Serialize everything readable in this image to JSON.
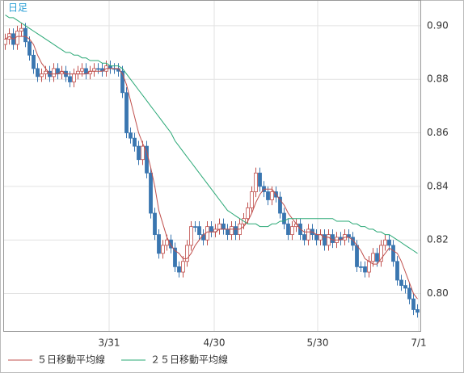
{
  "chart_data": {
    "type": "candlestick",
    "label": "日足",
    "open": [
      0.893,
      0.895,
      0.897,
      0.893,
      0.898,
      0.899,
      0.894,
      0.889,
      0.884,
      0.881,
      0.882,
      0.883,
      0.881,
      0.884,
      0.882,
      0.883,
      0.881,
      0.879,
      0.882,
      0.883,
      0.884,
      0.882,
      0.883,
      0.884,
      0.884,
      0.883,
      0.885,
      0.884,
      0.884,
      0.883,
      0.875,
      0.86,
      0.858,
      0.855,
      0.85,
      0.855,
      0.845,
      0.83,
      0.822,
      0.815,
      0.818,
      0.82,
      0.817,
      0.81,
      0.808,
      0.812,
      0.818,
      0.825,
      0.825,
      0.822,
      0.82,
      0.825,
      0.823,
      0.824,
      0.826,
      0.824,
      0.822,
      0.825,
      0.822,
      0.826,
      0.828,
      0.832,
      0.838,
      0.845,
      0.84,
      0.838,
      0.835,
      0.838,
      0.836,
      0.83,
      0.826,
      0.822,
      0.825,
      0.826,
      0.822,
      0.82,
      0.824,
      0.822,
      0.82,
      0.822,
      0.818,
      0.822,
      0.819,
      0.821,
      0.82,
      0.822,
      0.821,
      0.818,
      0.81,
      0.81,
      0.808,
      0.812,
      0.815,
      0.812,
      0.818,
      0.82,
      0.818,
      0.812,
      0.805,
      0.803,
      0.802,
      0.798,
      0.794
    ],
    "high": [
      0.897,
      0.899,
      0.899,
      0.9,
      0.901,
      0.901,
      0.896,
      0.891,
      0.886,
      0.884,
      0.885,
      0.885,
      0.886,
      0.886,
      0.885,
      0.885,
      0.883,
      0.884,
      0.885,
      0.886,
      0.886,
      0.885,
      0.886,
      0.886,
      0.886,
      0.887,
      0.887,
      0.886,
      0.886,
      0.885,
      0.877,
      0.862,
      0.86,
      0.857,
      0.857,
      0.857,
      0.847,
      0.832,
      0.824,
      0.82,
      0.822,
      0.822,
      0.819,
      0.812,
      0.814,
      0.82,
      0.827,
      0.827,
      0.827,
      0.824,
      0.827,
      0.827,
      0.826,
      0.828,
      0.828,
      0.826,
      0.827,
      0.827,
      0.828,
      0.83,
      0.834,
      0.84,
      0.847,
      0.847,
      0.842,
      0.84,
      0.84,
      0.84,
      0.838,
      0.832,
      0.828,
      0.827,
      0.828,
      0.828,
      0.824,
      0.826,
      0.826,
      0.824,
      0.824,
      0.824,
      0.824,
      0.824,
      0.823,
      0.823,
      0.824,
      0.824,
      0.823,
      0.82,
      0.812,
      0.812,
      0.814,
      0.817,
      0.817,
      0.82,
      0.822,
      0.822,
      0.82,
      0.814,
      0.807,
      0.805,
      0.804,
      0.8,
      0.796
    ],
    "low": [
      0.891,
      0.893,
      0.891,
      0.891,
      0.896,
      0.892,
      0.887,
      0.882,
      0.879,
      0.879,
      0.88,
      0.879,
      0.879,
      0.88,
      0.88,
      0.879,
      0.877,
      0.877,
      0.88,
      0.881,
      0.88,
      0.88,
      0.881,
      0.882,
      0.881,
      0.881,
      0.882,
      0.882,
      0.881,
      0.873,
      0.858,
      0.856,
      0.853,
      0.848,
      0.848,
      0.843,
      0.828,
      0.82,
      0.813,
      0.813,
      0.816,
      0.815,
      0.808,
      0.806,
      0.806,
      0.81,
      0.816,
      0.823,
      0.82,
      0.818,
      0.818,
      0.821,
      0.821,
      0.822,
      0.822,
      0.82,
      0.82,
      0.82,
      0.82,
      0.824,
      0.826,
      0.83,
      0.836,
      0.838,
      0.836,
      0.833,
      0.833,
      0.834,
      0.828,
      0.824,
      0.82,
      0.82,
      0.823,
      0.82,
      0.818,
      0.818,
      0.82,
      0.818,
      0.818,
      0.816,
      0.816,
      0.817,
      0.817,
      0.818,
      0.818,
      0.819,
      0.816,
      0.808,
      0.808,
      0.806,
      0.806,
      0.81,
      0.81,
      0.81,
      0.816,
      0.816,
      0.81,
      0.803,
      0.801,
      0.8,
      0.796,
      0.792,
      0.791
    ],
    "close": [
      0.895,
      0.897,
      0.893,
      0.898,
      0.899,
      0.894,
      0.889,
      0.884,
      0.881,
      0.882,
      0.883,
      0.881,
      0.884,
      0.882,
      0.883,
      0.881,
      0.879,
      0.882,
      0.883,
      0.884,
      0.882,
      0.883,
      0.884,
      0.884,
      0.883,
      0.885,
      0.884,
      0.884,
      0.883,
      0.875,
      0.86,
      0.858,
      0.855,
      0.85,
      0.855,
      0.845,
      0.83,
      0.822,
      0.815,
      0.818,
      0.82,
      0.817,
      0.81,
      0.808,
      0.812,
      0.818,
      0.825,
      0.825,
      0.822,
      0.82,
      0.825,
      0.823,
      0.824,
      0.826,
      0.824,
      0.822,
      0.825,
      0.822,
      0.826,
      0.828,
      0.832,
      0.838,
      0.845,
      0.84,
      0.838,
      0.835,
      0.838,
      0.836,
      0.83,
      0.826,
      0.822,
      0.825,
      0.826,
      0.822,
      0.82,
      0.824,
      0.822,
      0.82,
      0.822,
      0.818,
      0.822,
      0.819,
      0.821,
      0.82,
      0.822,
      0.821,
      0.818,
      0.81,
      0.81,
      0.808,
      0.812,
      0.815,
      0.812,
      0.818,
      0.82,
      0.818,
      0.812,
      0.805,
      0.803,
      0.802,
      0.798,
      0.794,
      0.793
    ],
    "up_color": "#c0504d",
    "down_color": "#3a76b0",
    "series": [
      {
        "name": "５日移動平均線",
        "color": "#c0504d",
        "values": [
          0.895,
          0.896,
          0.895,
          0.896,
          0.896,
          0.896,
          0.895,
          0.893,
          0.889,
          0.886,
          0.884,
          0.882,
          0.882,
          0.882,
          0.883,
          0.882,
          0.882,
          0.882,
          0.882,
          0.882,
          0.882,
          0.883,
          0.883,
          0.883,
          0.883,
          0.884,
          0.884,
          0.884,
          0.884,
          0.882,
          0.878,
          0.872,
          0.866,
          0.86,
          0.856,
          0.853,
          0.847,
          0.84,
          0.831,
          0.826,
          0.821,
          0.818,
          0.816,
          0.815,
          0.813,
          0.813,
          0.815,
          0.818,
          0.82,
          0.822,
          0.823,
          0.823,
          0.823,
          0.824,
          0.824,
          0.824,
          0.824,
          0.824,
          0.824,
          0.825,
          0.827,
          0.83,
          0.834,
          0.837,
          0.839,
          0.839,
          0.839,
          0.837,
          0.835,
          0.833,
          0.83,
          0.828,
          0.826,
          0.824,
          0.823,
          0.823,
          0.823,
          0.822,
          0.822,
          0.821,
          0.821,
          0.82,
          0.82,
          0.82,
          0.821,
          0.821,
          0.82,
          0.818,
          0.816,
          0.813,
          0.812,
          0.811,
          0.811,
          0.813,
          0.815,
          0.817,
          0.816,
          0.815,
          0.812,
          0.808,
          0.804,
          0.8,
          0.798
        ]
      },
      {
        "name": "２５日移動平均線",
        "color": "#2aa876",
        "values": [
          0.904,
          0.903,
          0.903,
          0.902,
          0.901,
          0.9,
          0.899,
          0.898,
          0.897,
          0.896,
          0.895,
          0.894,
          0.893,
          0.892,
          0.891,
          0.89,
          0.89,
          0.889,
          0.889,
          0.888,
          0.888,
          0.887,
          0.887,
          0.887,
          0.886,
          0.886,
          0.885,
          0.885,
          0.885,
          0.884,
          0.882,
          0.88,
          0.878,
          0.876,
          0.874,
          0.872,
          0.87,
          0.868,
          0.866,
          0.864,
          0.862,
          0.86,
          0.857,
          0.855,
          0.853,
          0.851,
          0.849,
          0.847,
          0.845,
          0.843,
          0.841,
          0.839,
          0.837,
          0.835,
          0.833,
          0.831,
          0.83,
          0.829,
          0.828,
          0.827,
          0.826,
          0.826,
          0.826,
          0.825,
          0.825,
          0.825,
          0.826,
          0.826,
          0.827,
          0.827,
          0.828,
          0.828,
          0.828,
          0.828,
          0.828,
          0.828,
          0.828,
          0.828,
          0.828,
          0.828,
          0.828,
          0.828,
          0.827,
          0.827,
          0.827,
          0.827,
          0.826,
          0.826,
          0.825,
          0.825,
          0.824,
          0.824,
          0.823,
          0.823,
          0.822,
          0.822,
          0.821,
          0.82,
          0.819,
          0.818,
          0.817,
          0.816,
          0.815
        ]
      }
    ],
    "xlim": [
      -0.5,
      102.7
    ],
    "xticks": [
      {
        "value": 25.7,
        "label": "3/31"
      },
      {
        "value": 51.7,
        "label": "4/30"
      },
      {
        "value": 77.3,
        "label": "5/30"
      },
      {
        "value": 102.3,
        "label": "7/1"
      }
    ],
    "ylim": [
      0.786,
      0.9096
    ],
    "yticks": [
      {
        "value": 0.8,
        "label": "0.80"
      },
      {
        "value": 0.82,
        "label": "0.82"
      },
      {
        "value": 0.84,
        "label": "0.84"
      },
      {
        "value": 0.86,
        "label": "0.86"
      },
      {
        "value": 0.88,
        "label": "0.88"
      },
      {
        "value": 0.9,
        "label": "0.90"
      }
    ],
    "grid": true
  }
}
